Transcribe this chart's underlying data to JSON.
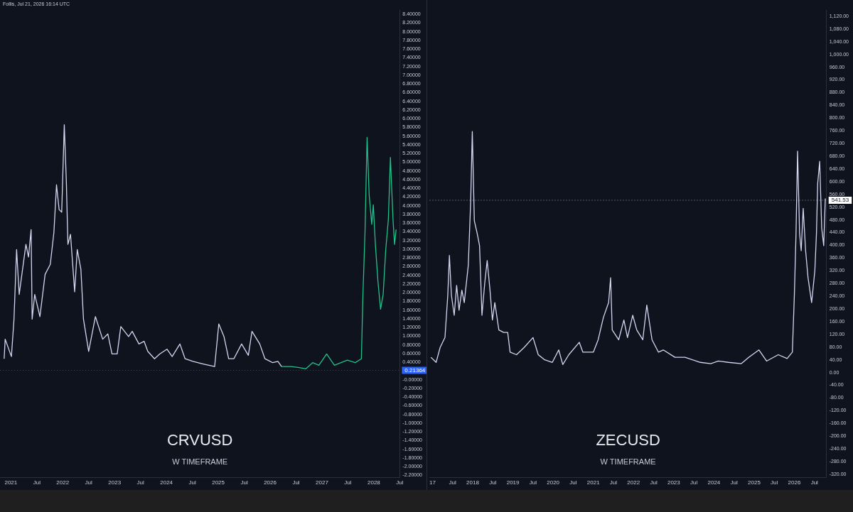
{
  "chart_data": [
    {
      "type": "line",
      "title": "CRVUSD",
      "subtitle": "W TIMEFRAME",
      "grid": false,
      "legend": false,
      "marker": "none",
      "annotations": [
        "Follis, Jul 21, 2026 16:14 UTC"
      ],
      "ref_lines": [
        {
          "axis": "y",
          "value": 0.21364,
          "label": "0.21364",
          "color": "#2962ff",
          "line_style": "dotted"
        }
      ],
      "xlim": [
        2020.79,
        2028.5
      ],
      "xticks": [
        {
          "value": 2021,
          "label": "2021"
        },
        {
          "value": 2021.5,
          "label": "Jul"
        },
        {
          "value": 2022,
          "label": "2022"
        },
        {
          "value": 2022.5,
          "label": "Jul"
        },
        {
          "value": 2023,
          "label": "2023"
        },
        {
          "value": 2023.5,
          "label": "Jul"
        },
        {
          "value": 2024,
          "label": "2024"
        },
        {
          "value": 2024.5,
          "label": "Jul"
        },
        {
          "value": 2025,
          "label": "2025"
        },
        {
          "value": 2025.5,
          "label": "Jul"
        },
        {
          "value": 2026,
          "label": "2026"
        },
        {
          "value": 2026.5,
          "label": "Jul"
        },
        {
          "value": 2027,
          "label": "2027"
        },
        {
          "value": 2027.5,
          "label": "Jul"
        },
        {
          "value": 2028,
          "label": "2028"
        },
        {
          "value": 2028.5,
          "label": "Jul"
        }
      ],
      "ylim": [
        -2.25,
        8.5
      ],
      "yticks": [
        {
          "value": -2.2,
          "label": "-2.20000"
        },
        {
          "value": -2,
          "label": "-2.00000"
        },
        {
          "value": -1.8,
          "label": "-1.80000"
        },
        {
          "value": -1.6,
          "label": "-1.60000"
        },
        {
          "value": -1.4,
          "label": "-1.40000"
        },
        {
          "value": -1.2,
          "label": "-1.20000"
        },
        {
          "value": -1,
          "label": "-1.00000"
        },
        {
          "value": -0.8,
          "label": "-0.80000"
        },
        {
          "value": -0.6,
          "label": "-0.60000"
        },
        {
          "value": -0.4,
          "label": "-0.40000"
        },
        {
          "value": -0.2,
          "label": "-0.20000"
        },
        {
          "value": 0,
          "label": "-0.00000"
        },
        {
          "value": 0.4,
          "label": "0.40000"
        },
        {
          "value": 0.6,
          "label": "0.60000"
        },
        {
          "value": 0.8,
          "label": "0.80000"
        },
        {
          "value": 1,
          "label": "1.00000"
        },
        {
          "value": 1.2,
          "label": "1.20000"
        },
        {
          "value": 1.4,
          "label": "1.40000"
        },
        {
          "value": 1.6,
          "label": "1.60000"
        },
        {
          "value": 1.8,
          "label": "1.80000"
        },
        {
          "value": 2,
          "label": "2.00000"
        },
        {
          "value": 2.2,
          "label": "2.20000"
        },
        {
          "value": 2.4,
          "label": "2.40000"
        },
        {
          "value": 2.6,
          "label": "2.60000"
        },
        {
          "value": 2.8,
          "label": "2.80000"
        },
        {
          "value": 3,
          "label": "3.00000"
        },
        {
          "value": 3.2,
          "label": "3.20000"
        },
        {
          "value": 3.4,
          "label": "3.40000"
        },
        {
          "value": 3.6,
          "label": "3.60000"
        },
        {
          "value": 3.8,
          "label": "3.80000"
        },
        {
          "value": 4,
          "label": "4.00000"
        },
        {
          "value": 4.2,
          "label": "4.20000"
        },
        {
          "value": 4.4,
          "label": "4.40000"
        },
        {
          "value": 4.6,
          "label": "4.60000"
        },
        {
          "value": 4.8,
          "label": "4.80000"
        },
        {
          "value": 5,
          "label": "5.00000"
        },
        {
          "value": 5.2,
          "label": "5.20000"
        },
        {
          "value": 5.4,
          "label": "5.40000"
        },
        {
          "value": 5.6,
          "label": "5.60000"
        },
        {
          "value": 5.8,
          "label": "5.80000"
        },
        {
          "value": 6,
          "label": "6.00000"
        },
        {
          "value": 6.2,
          "label": "6.20000"
        },
        {
          "value": 6.4,
          "label": "6.40000"
        },
        {
          "value": 6.6,
          "label": "6.60000"
        },
        {
          "value": 6.8,
          "label": "6.80000"
        },
        {
          "value": 7,
          "label": "7.00000"
        },
        {
          "value": 7.2,
          "label": "7.20000"
        },
        {
          "value": 7.4,
          "label": "7.40000"
        },
        {
          "value": 7.6,
          "label": "7.60000"
        },
        {
          "value": 7.8,
          "label": "7.80000"
        },
        {
          "value": 8,
          "label": "8.00000"
        },
        {
          "value": 8.2,
          "label": "8.20000"
        },
        {
          "value": 8.4,
          "label": "8.40000"
        }
      ],
      "series": [
        {
          "color": "#d4d7f2",
          "x": [
            2020.87,
            2020.89,
            2021.01,
            2021.06,
            2021.11,
            2021.16,
            2021.29,
            2021.34,
            2021.39,
            2021.41,
            2021.46,
            2021.56,
            2021.66,
            2021.76,
            2021.83,
            2021.88,
            2021.93,
            2021.98,
            2022.03,
            2022.07,
            2022.1,
            2022.15,
            2022.23,
            2022.28,
            2022.35,
            2022.4,
            2022.5,
            2022.63,
            2022.77,
            2022.87,
            2022.95,
            2023.05,
            2023.12,
            2023.27,
            2023.34,
            2023.47,
            2023.57,
            2023.64,
            2023.77,
            2023.87,
            2024.01,
            2024.11,
            2024.26,
            2024.36,
            2024.51,
            2024.71,
            2024.93,
            2025.01,
            2025.11,
            2025.2,
            2025.3,
            2025.45,
            2025.58,
            2025.65,
            2025.8,
            2025.9,
            2026.05,
            2026.15,
            2026.22
          ],
          "values": [
            0.48,
            0.93,
            0.53,
            1.39,
            2.99,
            1.96,
            3.11,
            2.82,
            3.45,
            1.39,
            1.96,
            1.45,
            2.42,
            2.65,
            3.39,
            4.48,
            3.91,
            3.85,
            5.86,
            4.54,
            3.11,
            3.34,
            2.02,
            2.99,
            2.54,
            1.39,
            0.65,
            1.45,
            0.93,
            1.05,
            0.59,
            0.59,
            1.22,
            0.99,
            1.11,
            0.82,
            0.88,
            0.65,
            0.48,
            0.59,
            0.7,
            0.53,
            0.82,
            0.48,
            0.42,
            0.36,
            0.3,
            1.28,
            0.99,
            0.48,
            0.48,
            0.82,
            0.56,
            1.11,
            0.82,
            0.48,
            0.39,
            0.42,
            0.3
          ]
        },
        {
          "color": "#22c38a",
          "x": [
            2026.22,
            2026.4,
            2026.54,
            2026.69,
            2026.82,
            2026.94,
            2027.09,
            2027.24,
            2027.49,
            2027.64,
            2027.76,
            2027.79,
            2027.83,
            2027.87,
            2027.91,
            2027.96,
            2027.99,
            2028.03,
            2028.08,
            2028.13,
            2028.18,
            2028.23,
            2028.28,
            2028.32,
            2028.37,
            2028.4,
            2028.43
          ],
          "values": [
            0.3,
            0.3,
            0.28,
            0.25,
            0.39,
            0.33,
            0.59,
            0.33,
            0.45,
            0.39,
            0.48,
            1.96,
            3.39,
            5.57,
            4.25,
            3.57,
            4.02,
            3.11,
            2.25,
            1.62,
            1.96,
            2.99,
            3.68,
            5.11,
            3.68,
            3.11,
            3.45
          ]
        }
      ]
    },
    {
      "type": "line",
      "title": "ZECUSD",
      "subtitle": "W TIMEFRAME",
      "grid": false,
      "legend": false,
      "marker": "none",
      "ref_lines": [
        {
          "axis": "y",
          "value": 541.53,
          "label": "541.53",
          "color": "#ffffff",
          "line_style": "dotted"
        }
      ],
      "xlim": [
        2016.93,
        2026.8
      ],
      "xticks": [
        {
          "value": 2017,
          "label": "17"
        },
        {
          "value": 2017.5,
          "label": "Jul"
        },
        {
          "value": 2018,
          "label": "2018"
        },
        {
          "value": 2018.5,
          "label": "Jul"
        },
        {
          "value": 2019,
          "label": "2019"
        },
        {
          "value": 2019.5,
          "label": "Jul"
        },
        {
          "value": 2020,
          "label": "2020"
        },
        {
          "value": 2020.5,
          "label": "Jul"
        },
        {
          "value": 2021,
          "label": "2021"
        },
        {
          "value": 2021.5,
          "label": "Jul"
        },
        {
          "value": 2022,
          "label": "2022"
        },
        {
          "value": 2022.5,
          "label": "Jul"
        },
        {
          "value": 2023,
          "label": "2023"
        },
        {
          "value": 2023.5,
          "label": "Jul"
        },
        {
          "value": 2024,
          "label": "2024"
        },
        {
          "value": 2024.5,
          "label": "Jul"
        },
        {
          "value": 2025,
          "label": "2025"
        },
        {
          "value": 2025.5,
          "label": "Jul"
        },
        {
          "value": 2026,
          "label": "2026"
        },
        {
          "value": 2026.5,
          "label": "Jul"
        }
      ],
      "ylim": [
        -330,
        1140
      ],
      "yticks": [
        {
          "value": -320,
          "label": "-320.00"
        },
        {
          "value": -280,
          "label": "-280.00"
        },
        {
          "value": -240,
          "label": "-240.00"
        },
        {
          "value": -200,
          "label": "-200.00"
        },
        {
          "value": -160,
          "label": "-160.00"
        },
        {
          "value": -120,
          "label": "-120.00"
        },
        {
          "value": -80,
          "label": "-80.00"
        },
        {
          "value": -40,
          "label": "-40.00"
        },
        {
          "value": 0,
          "label": "0.00"
        },
        {
          "value": 40,
          "label": "40.00"
        },
        {
          "value": 80,
          "label": "80.00"
        },
        {
          "value": 120,
          "label": "120.00"
        },
        {
          "value": 160,
          "label": "160.00"
        },
        {
          "value": 200,
          "label": "200.00"
        },
        {
          "value": 240,
          "label": "240.00"
        },
        {
          "value": 280,
          "label": "280.00"
        },
        {
          "value": 320,
          "label": "320.00"
        },
        {
          "value": 360,
          "label": "360.00"
        },
        {
          "value": 400,
          "label": "400.00"
        },
        {
          "value": 440,
          "label": "440.00"
        },
        {
          "value": 480,
          "label": "480.00"
        },
        {
          "value": 520,
          "label": "520.00"
        },
        {
          "value": 560,
          "label": "560.00"
        },
        {
          "value": 600,
          "label": "600.00"
        },
        {
          "value": 640,
          "label": "640.00"
        },
        {
          "value": 680,
          "label": "680.00"
        },
        {
          "value": 720,
          "label": "720.00"
        },
        {
          "value": 760,
          "label": "760.00"
        },
        {
          "value": 800,
          "label": "800.00"
        },
        {
          "value": 840,
          "label": "840.00"
        },
        {
          "value": 880,
          "label": "880.00"
        },
        {
          "value": 920,
          "label": "920.00"
        },
        {
          "value": 960,
          "label": "960.00"
        },
        {
          "value": 1000,
          "label": "1,000.00"
        },
        {
          "value": 1040,
          "label": "1,040.00"
        },
        {
          "value": 1080,
          "label": "1,080.00"
        },
        {
          "value": 1120,
          "label": "1,120.00"
        }
      ],
      "series": [
        {
          "color": "#d4d7f2",
          "x": [
            2016.96,
            2017.09,
            2017.19,
            2017.31,
            2017.38,
            2017.42,
            2017.47,
            2017.54,
            2017.6,
            2017.66,
            2017.73,
            2017.79,
            2017.89,
            2017.95,
            2017.99,
            2018.04,
            2018.11,
            2018.17,
            2018.23,
            2018.3,
            2018.36,
            2018.43,
            2018.49,
            2018.55,
            2018.65,
            2018.77,
            2018.87,
            2018.93,
            2019.09,
            2019.28,
            2019.5,
            2019.63,
            2019.79,
            2019.98,
            2020.14,
            2020.24,
            2020.39,
            2020.65,
            2020.74,
            2021.0,
            2021.12,
            2021.25,
            2021.38,
            2021.43,
            2021.47,
            2021.63,
            2021.76,
            2021.85,
            2021.98,
            2022.08,
            2022.23,
            2022.33,
            2022.46,
            2022.62,
            2022.74,
            2023.03,
            2023.28,
            2023.66,
            2023.92,
            2024.11,
            2024.36,
            2024.68,
            2024.87,
            2025.12,
            2025.31,
            2025.6,
            2025.82,
            2025.95,
            2026.0,
            2026.04,
            2026.08,
            2026.13,
            2026.17,
            2026.22,
            2026.28,
            2026.34,
            2026.43,
            2026.51,
            2026.55,
            2026.58,
            2026.63,
            2026.68,
            2026.73,
            2026.77
          ],
          "values": [
            48,
            32,
            79,
            110,
            243,
            368,
            243,
            180,
            274,
            196,
            259,
            220,
            337,
            540,
            758,
            477,
            438,
            399,
            180,
            282,
            352,
            259,
            165,
            220,
            134,
            126,
            126,
            64,
            56,
            79,
            110,
            56,
            40,
            32,
            71,
            25,
            56,
            95,
            64,
            64,
            103,
            173,
            220,
            298,
            134,
            103,
            165,
            110,
            180,
            134,
            103,
            212,
            103,
            64,
            71,
            48,
            48,
            32,
            28,
            36,
            32,
            28,
            48,
            71,
            36,
            56,
            44,
            64,
            243,
            430,
            696,
            438,
            383,
            516,
            383,
            298,
            220,
            321,
            438,
            594,
            664,
            454,
            399,
            547
          ]
        }
      ]
    }
  ]
}
